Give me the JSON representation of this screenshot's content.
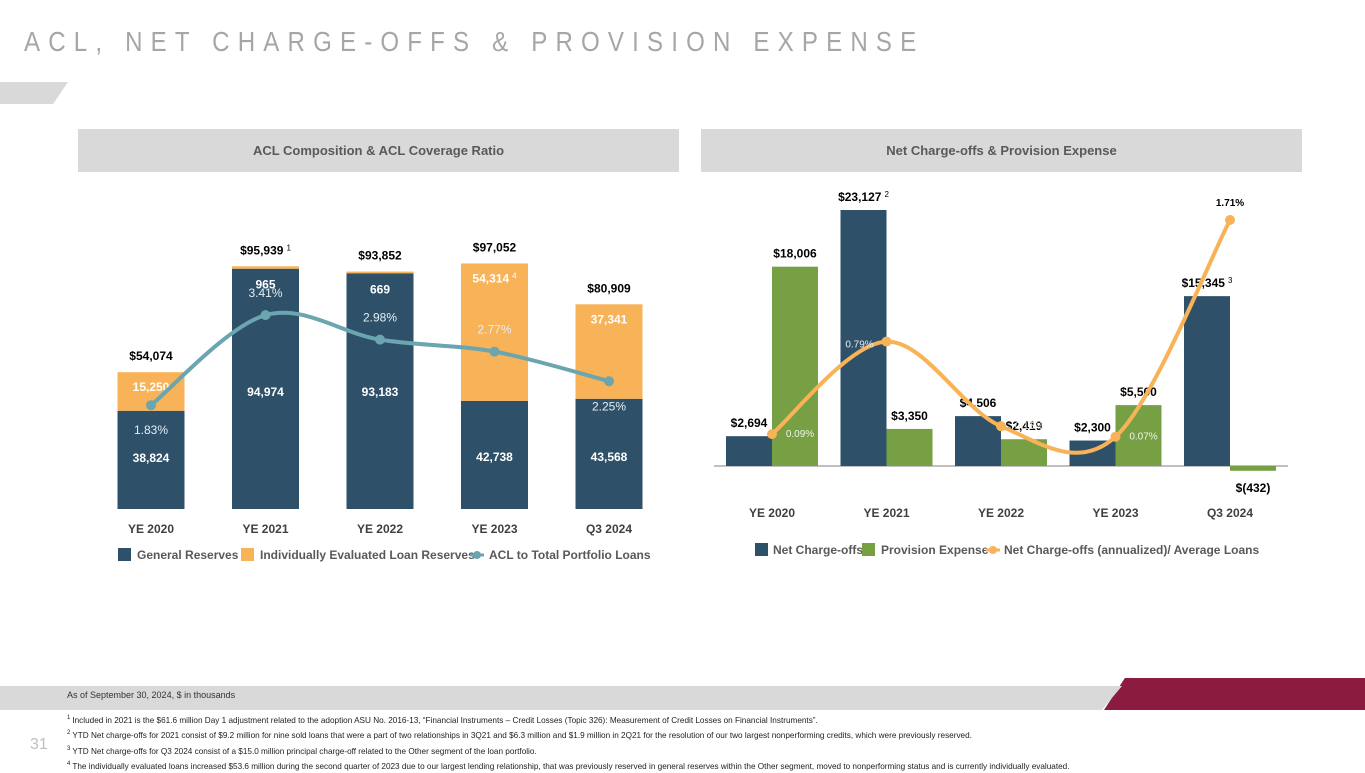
{
  "page": {
    "title": "ACL, NET CHARGE-OFFS & PROVISION EXPENSE",
    "page_number": "31",
    "as_of": "As of September 30, 2024, $ in thousands",
    "accent_color": "#8b1c3f"
  },
  "footnotes": [
    {
      "marker": "1",
      "text": "Included in 2021 is the $61.6 million Day 1 adjustment related to the adoption ASU No. 2016-13, “Financial Instruments – Credit Losses (Topic 326): Measurement of Credit Losses on Financial Instruments”."
    },
    {
      "marker": "2",
      "text": "YTD Net charge-offs for 2021 consist of $9.2 million for nine sold loans that were a part of two relationships in 3Q21 and $6.3 million and $1.9 million in 2Q21 for the resolution of our two largest nonperforming credits, which were previously reserved."
    },
    {
      "marker": "3",
      "text": "YTD Net charge-offs for Q3 2024 consist of a $15.0 million principal charge-off related to the Other segment of the loan portfolio."
    },
    {
      "marker": "4",
      "text": "The individually evaluated loans increased $53.6 million during the second quarter of 2023 due to our largest lending relationship, that was previously reserved in general reserves within the Other segment, moved to nonperforming status and is currently individually evaluated."
    }
  ],
  "chart_data": [
    {
      "type": "bar",
      "stacked": true,
      "title": "ACL Composition & ACL Coverage Ratio",
      "xlabel": "",
      "ylabel": "",
      "categories": [
        "YE 2020",
        "YE 2021",
        "YE 2022",
        "YE 2023",
        "Q3 2024"
      ],
      "series": [
        {
          "name": "General Reserves",
          "kind": "bar",
          "color": "#2f5069",
          "values": [
            38824,
            94974,
            93183,
            42738,
            43568
          ],
          "labels": [
            "38,824",
            "94,974",
            "93,183",
            "42,738",
            "43,568"
          ]
        },
        {
          "name": "Individually Evaluated Loan Reserves",
          "kind": "bar",
          "color": "#f8b257",
          "values": [
            15250,
            965,
            669,
            54314,
            37341
          ],
          "labels": [
            "15,250",
            "965",
            "669",
            "54,314",
            "37,341"
          ],
          "label_superscripts": [
            "",
            "",
            "",
            "4",
            ""
          ]
        },
        {
          "name": "ACL to Total Portfolio Loans",
          "kind": "line",
          "color": "#6aa5b0",
          "unit": "%",
          "values": [
            1.83,
            3.41,
            2.98,
            2.77,
            2.25
          ],
          "labels": [
            "1.83%",
            "3.41%",
            "2.98%",
            "2.77%",
            "2.25%"
          ]
        }
      ],
      "totals": [
        "$54,074",
        "$95,939",
        "$93,852",
        "$97,052",
        "$80,909"
      ],
      "total_superscripts": [
        "",
        "1",
        "",
        "",
        ""
      ],
      "ylim": [
        0,
        100000
      ],
      "grid": false,
      "legend": "bottom"
    },
    {
      "type": "bar",
      "stacked": false,
      "title": "Net Charge-offs & Provision Expense",
      "xlabel": "",
      "ylabel": "",
      "categories": [
        "YE 2020",
        "YE 2021",
        "YE 2022",
        "YE 2023",
        "Q3 2024"
      ],
      "series": [
        {
          "name": "Net Charge-offs",
          "kind": "bar",
          "color": "#2f5069",
          "values": [
            2694,
            23127,
            4506,
            2300,
            15345
          ],
          "labels": [
            "$2,694",
            "$23,127",
            "$4,506",
            "$2,300",
            "$15,345"
          ],
          "label_superscripts": [
            "",
            "2",
            "",
            "",
            "3"
          ]
        },
        {
          "name": "Provision Expense",
          "kind": "bar",
          "color": "#76a043",
          "values": [
            18006,
            3350,
            2419,
            5500,
            -432
          ],
          "labels": [
            "$18,006",
            "$3,350",
            "$2,419",
            "$5,500",
            "$(432)"
          ]
        },
        {
          "name": "Net Charge-offs (annualized)/ Average Loans",
          "kind": "line",
          "color": "#f8b257",
          "unit": "%",
          "values": [
            0.09,
            0.79,
            0.15,
            0.07,
            1.71
          ],
          "labels": [
            "0.09%",
            "0.79%",
            "0.15%",
            "0.07%",
            "1.71%"
          ]
        }
      ],
      "ylim": [
        -1000,
        25000
      ],
      "line_ylim": [
        0,
        1.9
      ],
      "grid": false,
      "legend": "bottom"
    }
  ]
}
